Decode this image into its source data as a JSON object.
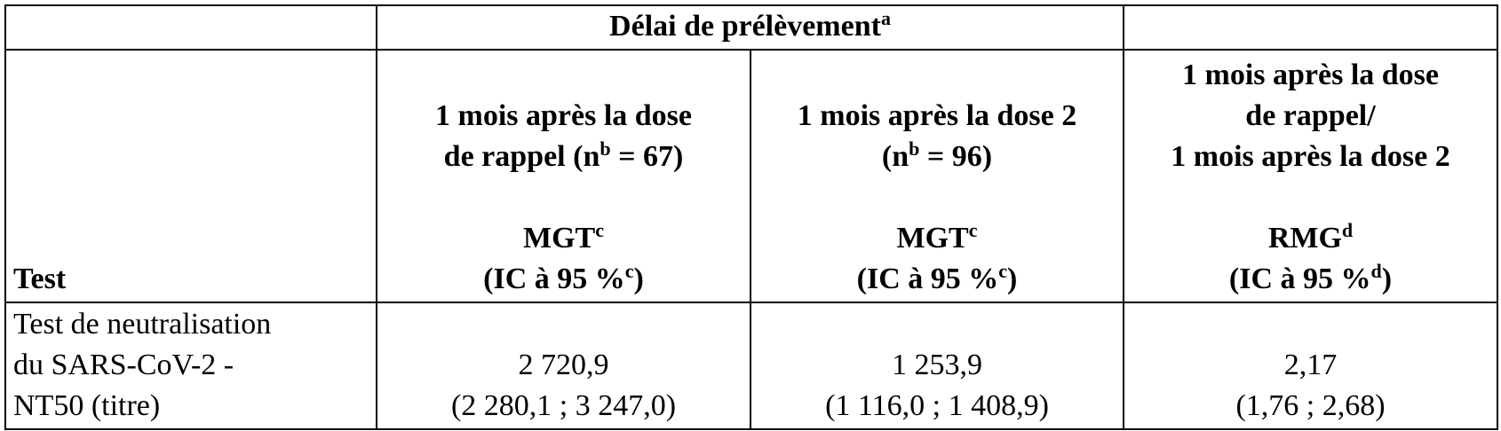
{
  "table": {
    "group_header": [
      "Délai de prélèvement",
      {
        "sup": "a"
      }
    ],
    "test_header": "Test",
    "columns": [
      [
        [
          "1 mois après la dose"
        ],
        [
          "de rappel (n",
          {
            "sup": "b"
          },
          " = 67)"
        ],
        [],
        [
          "MGT",
          {
            "sup": "c"
          }
        ],
        [
          "(IC à 95 %",
          {
            "sup": "c"
          },
          ")"
        ]
      ],
      [
        [
          "1 mois après la dose 2"
        ],
        [
          "(n",
          {
            "sup": "b"
          },
          " = 96)"
        ],
        [],
        [
          "MGT",
          {
            "sup": "c"
          }
        ],
        [
          "(IC à 95 %",
          {
            "sup": "c"
          },
          ")"
        ]
      ],
      [
        [
          "1 mois après la dose"
        ],
        [
          "de rappel/"
        ],
        [
          "1 mois après la dose 2"
        ],
        [],
        [
          "RMG",
          {
            "sup": "d"
          }
        ],
        [
          "(IC à 95 %",
          {
            "sup": "d"
          },
          ")"
        ]
      ]
    ],
    "rows": [
      {
        "test": [
          "Test de neutralisation",
          "du SARS-CoV-2 -",
          "NT50 (titre)"
        ],
        "values": [
          [
            "2 720,9",
            "(2 280,1 ; 3 247,0)"
          ],
          [
            "1 253,9",
            "(1 116,0 ; 1 408,9)"
          ],
          [
            "2,17",
            "(1,76 ; 2,68)"
          ]
        ]
      }
    ]
  }
}
